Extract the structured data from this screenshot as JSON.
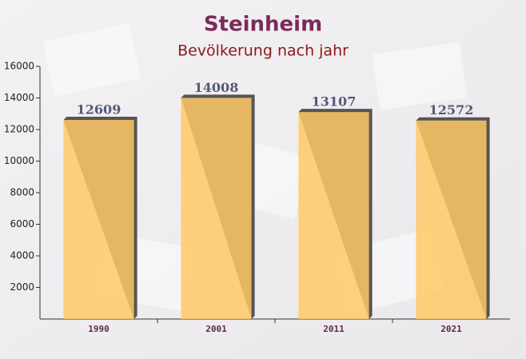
{
  "chart_data": {
    "type": "bar",
    "title": "Steinheim",
    "subtitle": "Bevölkerung nach jahr",
    "categories": [
      "1990",
      "2001",
      "2011",
      "2021"
    ],
    "values": [
      12609,
      14008,
      13107,
      12572
    ],
    "color": "#ffc966",
    "ylim": [
      0,
      16000
    ],
    "yticks": [
      2000,
      4000,
      6000,
      8000,
      10000,
      12000,
      14000,
      16000
    ],
    "grid": false
  }
}
